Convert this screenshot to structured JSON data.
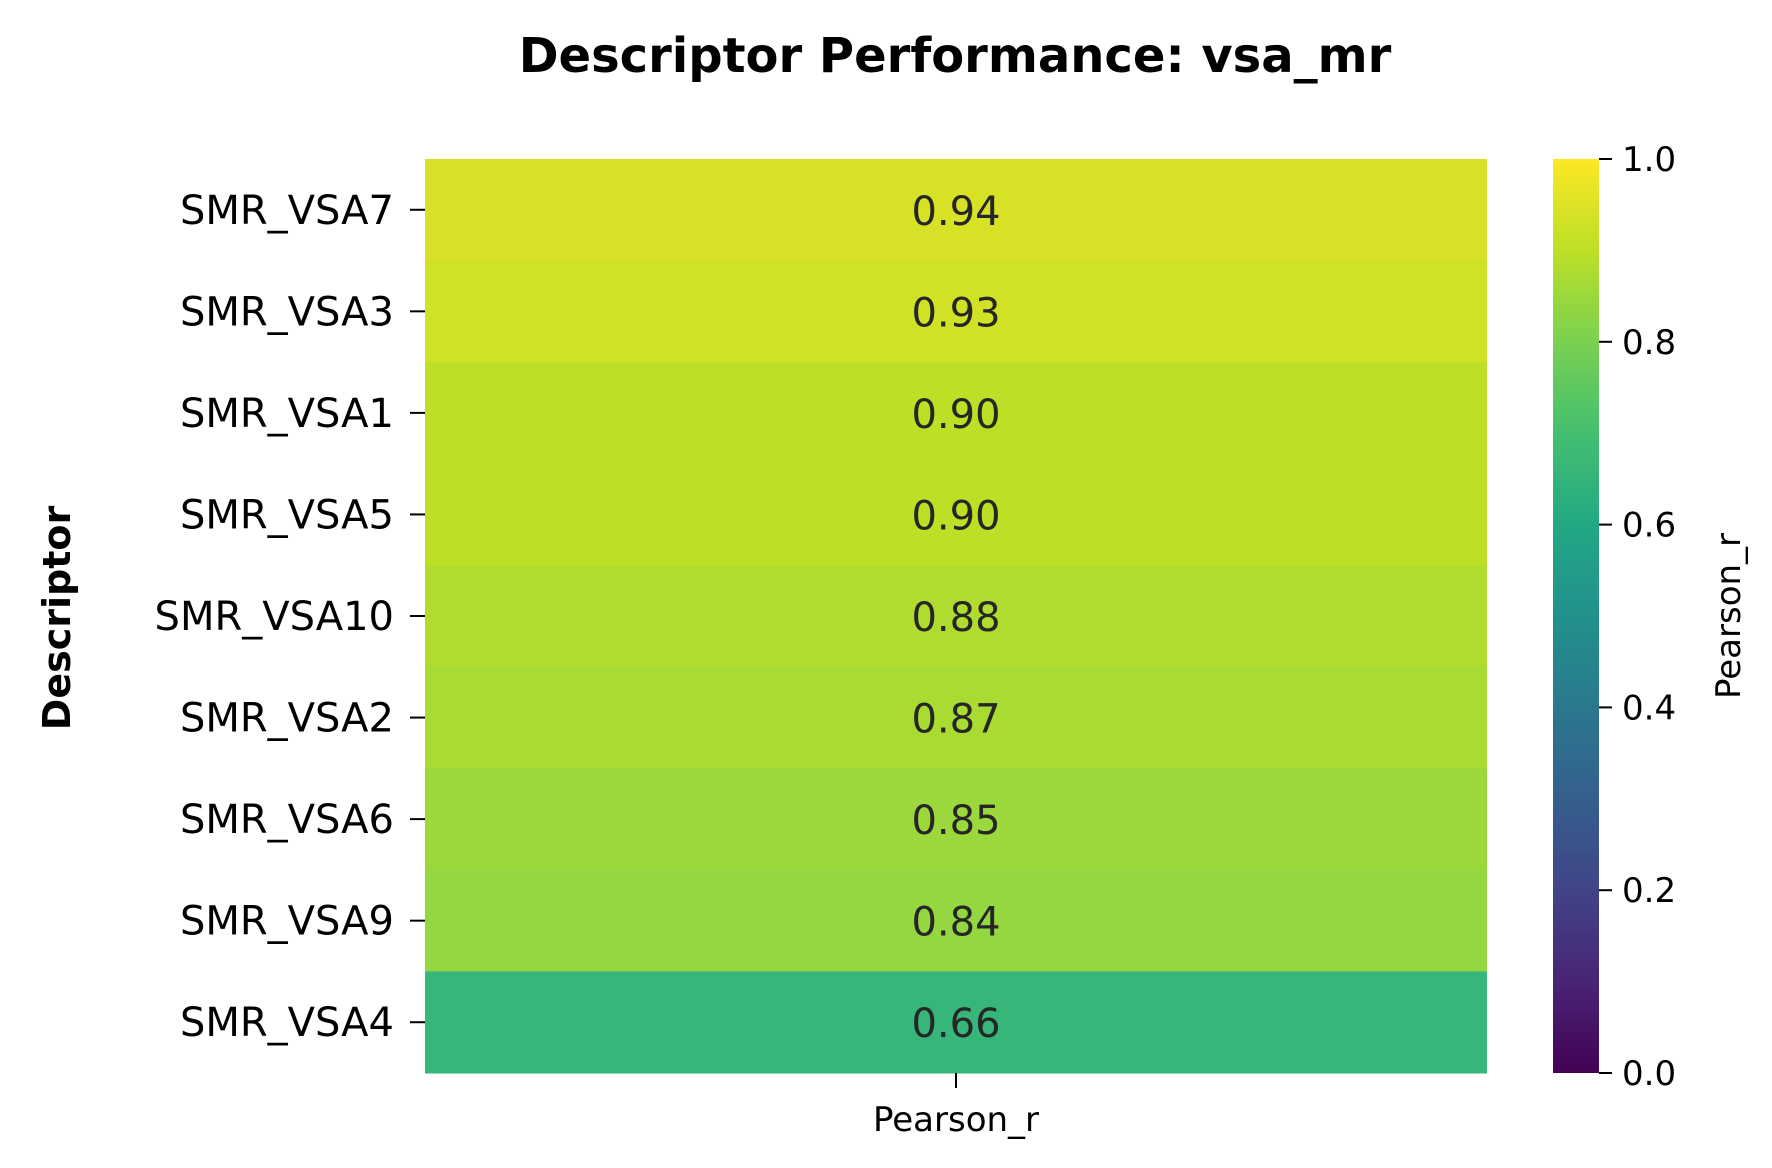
{
  "chart_data": {
    "type": "heatmap",
    "title": "Descriptor Performance: vsa_mr",
    "ylabel": "Descriptor",
    "columns": [
      "Pearson_r"
    ],
    "rows": [
      "SMR_VSA7",
      "SMR_VSA3",
      "SMR_VSA1",
      "SMR_VSA5",
      "SMR_VSA10",
      "SMR_VSA2",
      "SMR_VSA6",
      "SMR_VSA9",
      "SMR_VSA4"
    ],
    "values": [
      0.94,
      0.93,
      0.9,
      0.9,
      0.88,
      0.87,
      0.85,
      0.84,
      0.66
    ],
    "value_labels": [
      "0.94",
      "0.93",
      "0.90",
      "0.90",
      "0.88",
      "0.87",
      "0.85",
      "0.84",
      "0.66"
    ],
    "colorbar": {
      "label": "Pearson_r",
      "range": [
        0.0,
        1.0
      ],
      "ticks": [
        "0.0",
        "0.2",
        "0.4",
        "0.6",
        "0.8",
        "1.0"
      ],
      "colormap": "viridis"
    }
  }
}
